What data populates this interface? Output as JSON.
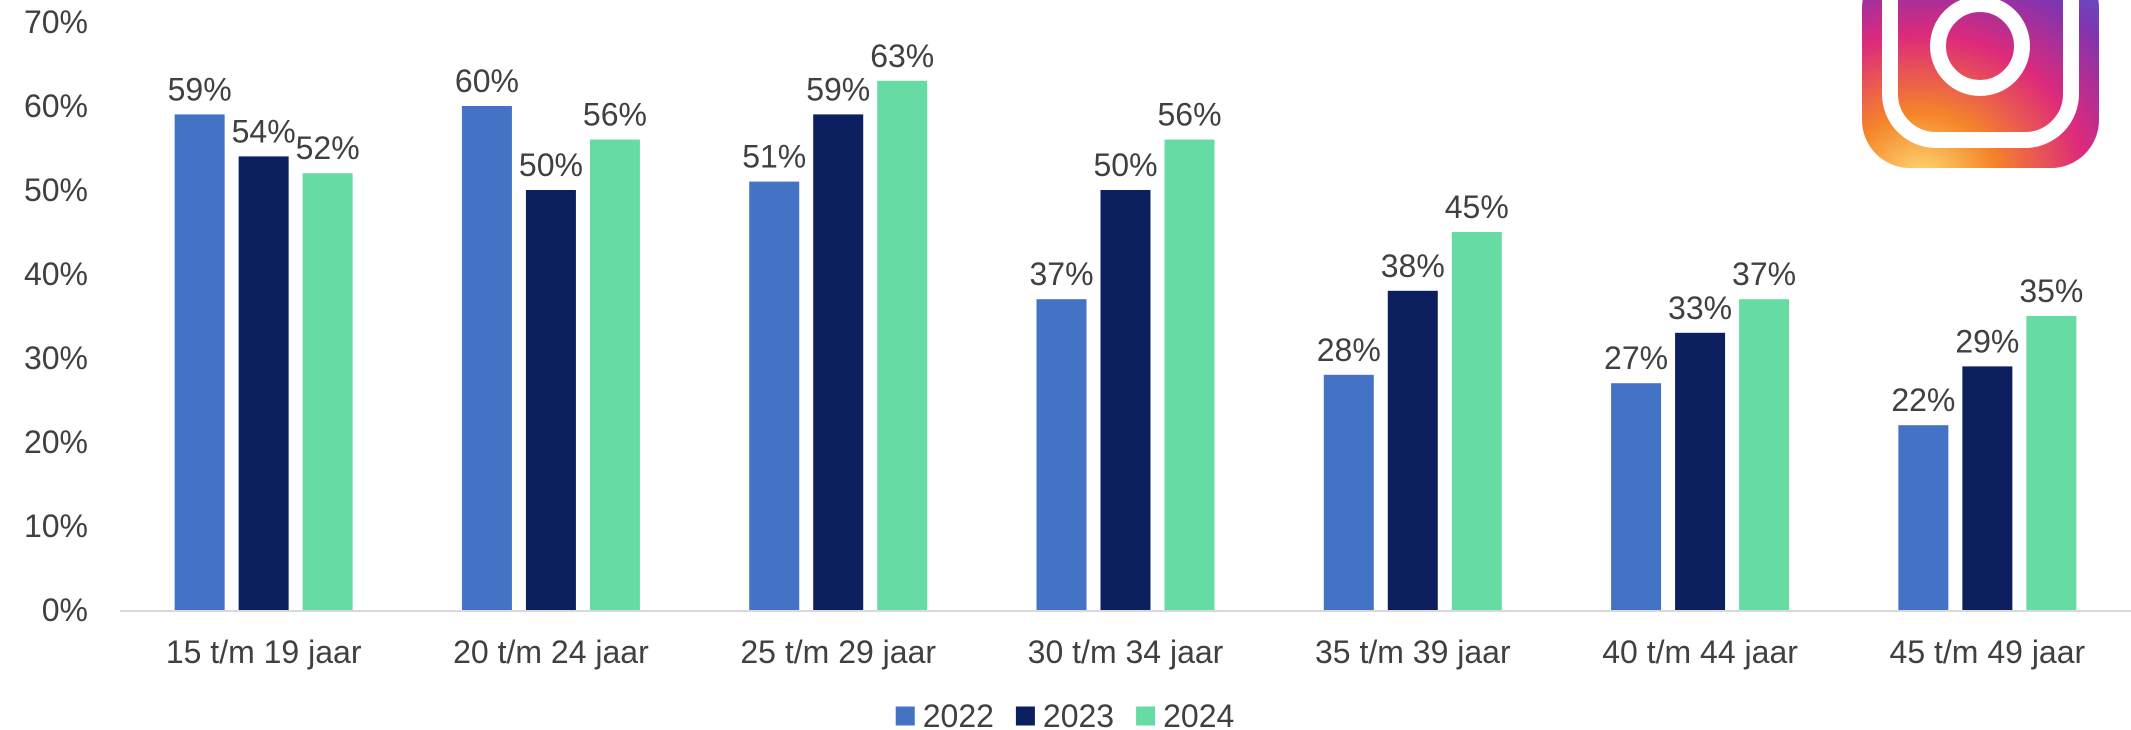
{
  "chart_data": {
    "type": "bar",
    "title": "",
    "xlabel": "",
    "ylabel": "",
    "ylim": [
      0,
      70
    ],
    "yticks": [
      0,
      10,
      20,
      30,
      40,
      50,
      60,
      70
    ],
    "ytick_labels": [
      "0%",
      "10%",
      "20%",
      "30%",
      "40%",
      "50%",
      "60%",
      "70%"
    ],
    "grid": false,
    "legend_position": "bottom",
    "categories": [
      "15 t/m 19 jaar",
      "20 t/m 24 jaar",
      "25 t/m 29 jaar",
      "30 t/m 34 jaar",
      "35 t/m 39 jaar",
      "40 t/m 44 jaar",
      "45 t/m 49 jaar"
    ],
    "series": [
      {
        "name": "2022",
        "color": "#4472C4",
        "values": [
          59,
          60,
          51,
          37,
          28,
          27,
          22
        ],
        "labels": [
          "59%",
          "60%",
          "51%",
          "37%",
          "28%",
          "27%",
          "22%"
        ]
      },
      {
        "name": "2023",
        "color": "#0C1F5E",
        "values": [
          54,
          50,
          59,
          50,
          38,
          33,
          29
        ],
        "labels": [
          "54%",
          "50%",
          "59%",
          "50%",
          "38%",
          "33%",
          "29%"
        ]
      },
      {
        "name": "2024",
        "color": "#66DBA4",
        "values": [
          52,
          56,
          63,
          56,
          45,
          37,
          35
        ],
        "labels": [
          "52%",
          "56%",
          "63%",
          "56%",
          "45%",
          "37%",
          "35%"
        ]
      }
    ]
  },
  "logo": {
    "icon": "instagram-icon",
    "colors": [
      "#FEDA75",
      "#F58529",
      "#DD2A7B",
      "#8134AF",
      "#515BD4"
    ]
  }
}
